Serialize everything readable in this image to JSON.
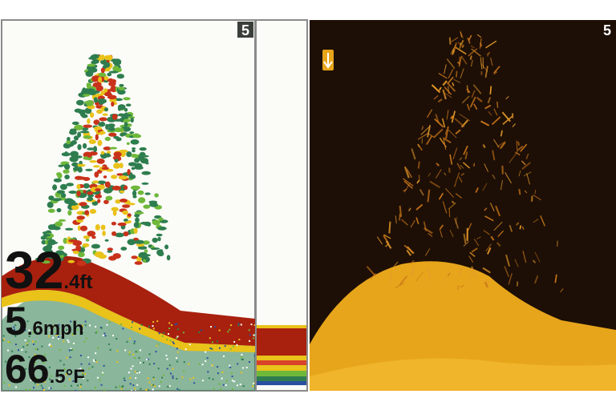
{
  "left_panel": {
    "range_label": "5",
    "readouts": [
      {
        "whole": "32",
        "fraction": ".4ft"
      },
      {
        "whole": "5",
        "fraction": ".6mph"
      },
      {
        "whole": "66",
        "fraction": ".5°F"
      }
    ]
  },
  "right_panel": {
    "range_label": "5"
  }
}
